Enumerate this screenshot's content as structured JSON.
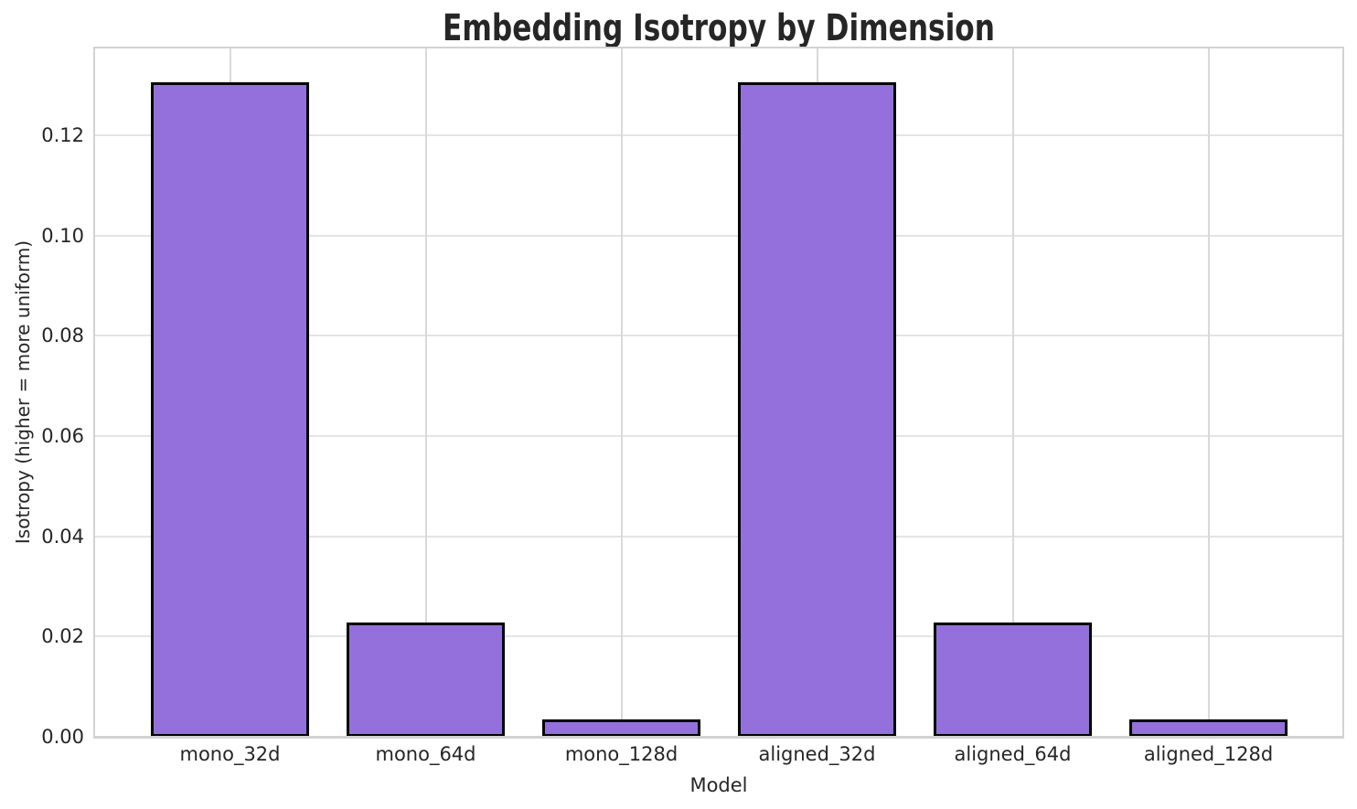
{
  "chart_data": {
    "type": "bar",
    "title": "Embedding Isotropy by Dimension",
    "xlabel": "Model",
    "ylabel": "Isotropy (higher = more uniform)",
    "categories": [
      "mono_32d",
      "mono_64d",
      "mono_128d",
      "aligned_32d",
      "aligned_64d",
      "aligned_128d"
    ],
    "values": [
      0.1305,
      0.0228,
      0.0034,
      0.1305,
      0.0228,
      0.0034
    ],
    "ylim": [
      0,
      0.1375
    ],
    "yticks": [
      0.0,
      0.02,
      0.04,
      0.06,
      0.08,
      0.1,
      0.12
    ],
    "ytick_labels": [
      "0.00",
      "0.02",
      "0.04",
      "0.06",
      "0.08",
      "0.10",
      "0.12"
    ],
    "grid": true,
    "legend": false,
    "bar_color": "#9370DB",
    "bar_edge_color": "#000000",
    "grid_color": "#e0e0e0",
    "spine_color": "#d2d2d2",
    "text_color": "#262626",
    "background_color": "#ffffff"
  }
}
